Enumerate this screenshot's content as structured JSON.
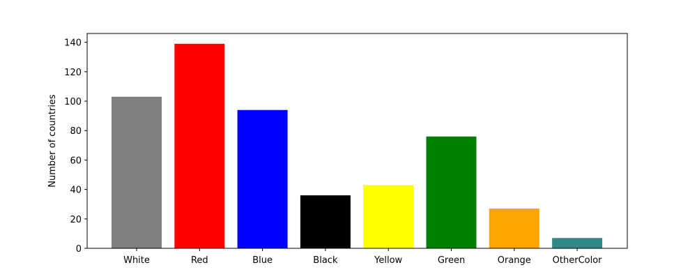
{
  "chart_data": {
    "type": "bar",
    "categories": [
      "White",
      "Red",
      "Blue",
      "Black",
      "Yellow",
      "Green",
      "Orange",
      "OtherColor"
    ],
    "values": [
      103,
      139,
      94,
      36,
      43,
      76,
      27,
      7
    ],
    "colors": [
      "#808080",
      "#ff0000",
      "#0000ff",
      "#000000",
      "#ffff00",
      "#008000",
      "#ffa500",
      "#348888"
    ],
    "ylabel": "Number of countries",
    "ylim": [
      0,
      146
    ],
    "yticks": [
      0,
      20,
      40,
      60,
      80,
      100,
      120,
      140
    ],
    "grid": false
  }
}
